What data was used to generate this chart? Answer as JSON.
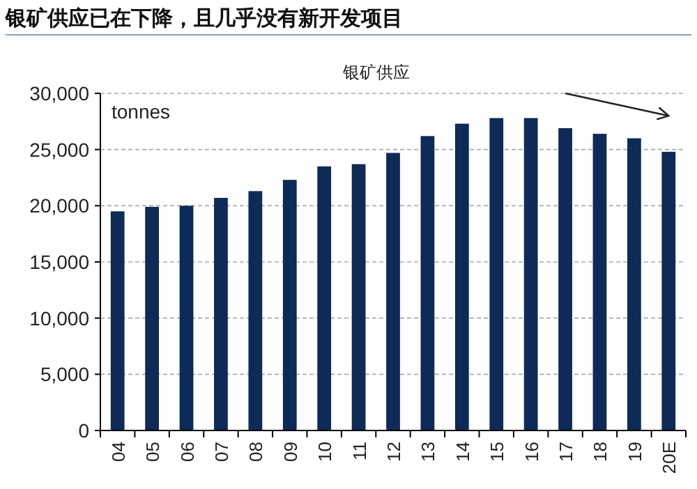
{
  "chart_data": {
    "type": "bar",
    "title": "银矿供应已在下降，且几乎没有新开发项目",
    "subtitle": "银矿供应",
    "ylabel": "tonnes",
    "categories": [
      "04",
      "05",
      "06",
      "07",
      "08",
      "09",
      "10",
      "11",
      "12",
      "13",
      "14",
      "15",
      "16",
      "17",
      "18",
      "19",
      "20E"
    ],
    "series": [
      {
        "color": "#0e2a56",
        "values": [
          19500,
          19900,
          20000,
          20700,
          21300,
          22300,
          23500,
          23700,
          24700,
          26200,
          27300,
          27800,
          27800,
          26900,
          26400,
          26000,
          24800
        ]
      },
      {
        "type": "line",
        "color": "#222222",
        "x": [
          "17",
          "20E"
        ],
        "values": [
          30000,
          28000
        ]
      }
    ],
    "ylim": [
      0,
      30000
    ],
    "yticks": [
      {
        "value": 0,
        "label": "0"
      },
      {
        "value": 5000,
        "label": "5,000"
      },
      {
        "value": 10000,
        "label": "10,000"
      },
      {
        "value": 15000,
        "label": "15,000"
      },
      {
        "value": 20000,
        "label": "20,000"
      },
      {
        "value": 25000,
        "label": "25,000"
      },
      {
        "value": 30000,
        "label": "30,000"
      }
    ],
    "grid": "y"
  }
}
